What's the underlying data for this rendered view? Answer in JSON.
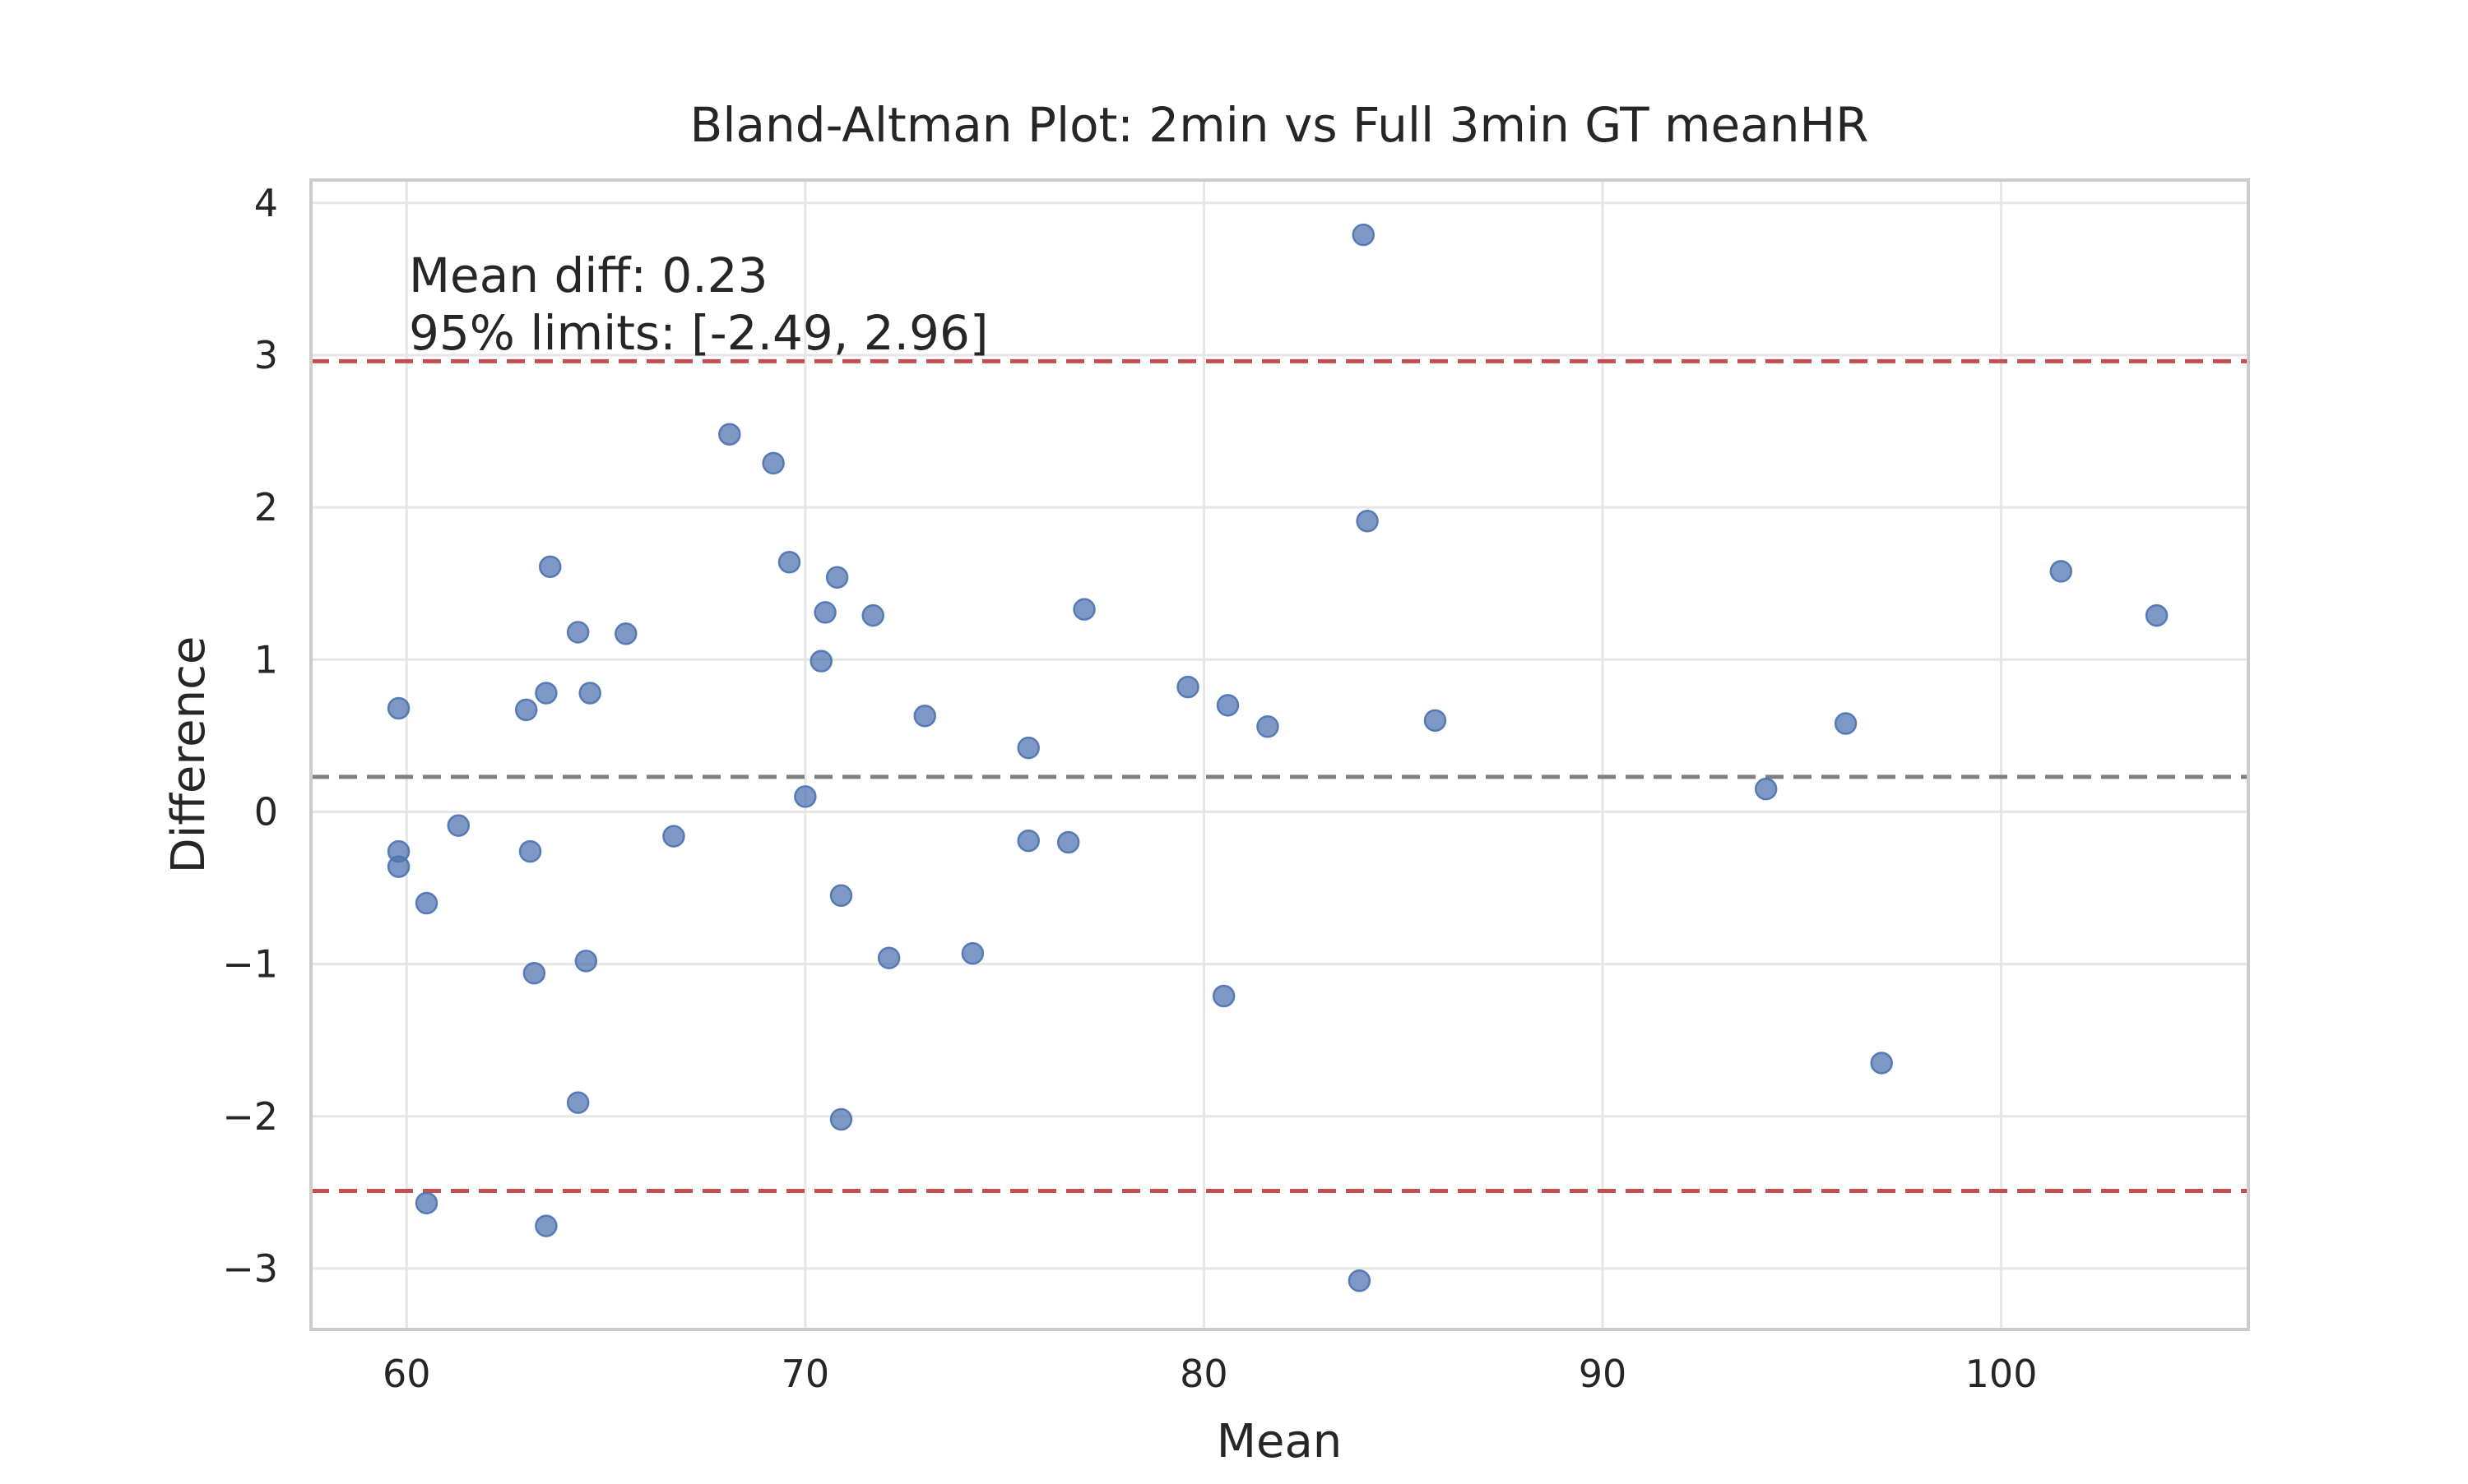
{
  "chart_data": {
    "type": "scatter",
    "title": "Bland-Altman Plot: 2min vs Full 3min GT meanHR",
    "xlabel": "Mean",
    "ylabel": "Difference",
    "xlim": [
      57.6,
      106.2
    ],
    "ylim": [
      -3.4,
      4.15
    ],
    "x_ticks": [
      60,
      70,
      80,
      90,
      100
    ],
    "y_ticks": [
      -3,
      -2,
      -1,
      0,
      1,
      2,
      3,
      4
    ],
    "x_tick_labels": [
      "60",
      "70",
      "80",
      "90",
      "100"
    ],
    "y_tick_labels": [
      "−3",
      "−2",
      "−1",
      "0",
      "1",
      "2",
      "3",
      "4"
    ],
    "grid": true,
    "mean_diff": 0.23,
    "upper_limit": 2.96,
    "lower_limit": -2.49,
    "annotations": [
      "Mean diff: 0.23",
      "95% limits: [-2.49, 2.96]"
    ],
    "colors": {
      "points": "#4c72b0",
      "limits": "#c44e52",
      "mean": "#808080",
      "grid": "#e6e6e6",
      "frame": "#cccccc"
    },
    "points": [
      {
        "x": 59.8,
        "y": 0.68
      },
      {
        "x": 59.8,
        "y": -0.26
      },
      {
        "x": 59.8,
        "y": -0.36
      },
      {
        "x": 60.5,
        "y": -0.6
      },
      {
        "x": 60.5,
        "y": -2.57
      },
      {
        "x": 61.3,
        "y": -0.09
      },
      {
        "x": 63.0,
        "y": 0.67
      },
      {
        "x": 63.1,
        "y": -0.26
      },
      {
        "x": 63.2,
        "y": -1.06
      },
      {
        "x": 63.5,
        "y": 0.78
      },
      {
        "x": 63.5,
        "y": -2.72
      },
      {
        "x": 63.6,
        "y": 1.61
      },
      {
        "x": 64.3,
        "y": 1.18
      },
      {
        "x": 64.3,
        "y": -1.91
      },
      {
        "x": 64.5,
        "y": -0.98
      },
      {
        "x": 64.6,
        "y": 0.78
      },
      {
        "x": 65.5,
        "y": 1.17
      },
      {
        "x": 66.7,
        "y": -0.16
      },
      {
        "x": 68.1,
        "y": 2.48
      },
      {
        "x": 69.2,
        "y": 2.29
      },
      {
        "x": 69.6,
        "y": 1.64
      },
      {
        "x": 70.0,
        "y": 0.1
      },
      {
        "x": 70.4,
        "y": 0.99
      },
      {
        "x": 70.5,
        "y": 1.31
      },
      {
        "x": 70.8,
        "y": 1.54
      },
      {
        "x": 70.9,
        "y": -0.55
      },
      {
        "x": 70.9,
        "y": -2.02
      },
      {
        "x": 71.7,
        "y": 1.29
      },
      {
        "x": 72.1,
        "y": -0.96
      },
      {
        "x": 73.0,
        "y": 0.63
      },
      {
        "x": 74.2,
        "y": -0.93
      },
      {
        "x": 75.6,
        "y": 0.42
      },
      {
        "x": 75.6,
        "y": -0.19
      },
      {
        "x": 76.6,
        "y": -0.2
      },
      {
        "x": 77.0,
        "y": 1.33
      },
      {
        "x": 79.6,
        "y": 0.82
      },
      {
        "x": 80.5,
        "y": -1.21
      },
      {
        "x": 80.6,
        "y": 0.7
      },
      {
        "x": 81.6,
        "y": 0.56
      },
      {
        "x": 84.0,
        "y": 3.79
      },
      {
        "x": 84.1,
        "y": 1.91
      },
      {
        "x": 83.9,
        "y": -3.08
      },
      {
        "x": 85.8,
        "y": 0.6
      },
      {
        "x": 94.1,
        "y": 0.15
      },
      {
        "x": 96.1,
        "y": 0.58
      },
      {
        "x": 97.0,
        "y": -1.65
      },
      {
        "x": 101.5,
        "y": 1.58
      },
      {
        "x": 103.9,
        "y": 1.29
      }
    ]
  }
}
